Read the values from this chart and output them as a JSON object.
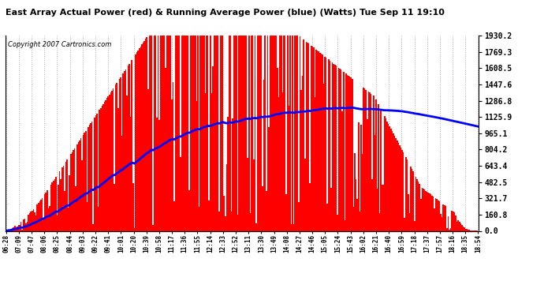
{
  "title": "East Array Actual Power (red) & Running Average Power (blue) (Watts) Tue Sep 11 19:10",
  "copyright": "Copyright 2007 Cartronics.com",
  "ylabel_right": [
    "1930.2",
    "1769.3",
    "1608.5",
    "1447.6",
    "1286.8",
    "1125.9",
    "965.1",
    "804.2",
    "643.4",
    "482.5",
    "321.7",
    "160.8",
    "0.0"
  ],
  "ymax": 1930.2,
  "ymin": 0.0,
  "background_color": "#ffffff",
  "bar_color": "#ff0000",
  "line_color": "#0000ff",
  "grid_color": "#aaaaaa",
  "x_labels": [
    "06:28",
    "07:09",
    "07:47",
    "08:06",
    "08:25",
    "08:44",
    "09:03",
    "09:22",
    "09:41",
    "10:01",
    "10:20",
    "10:39",
    "10:58",
    "11:17",
    "11:36",
    "11:55",
    "12:14",
    "12:33",
    "12:52",
    "13:11",
    "13:30",
    "13:49",
    "14:08",
    "14:27",
    "14:46",
    "15:05",
    "15:24",
    "15:43",
    "16:02",
    "16:21",
    "16:40",
    "16:59",
    "17:18",
    "17:37",
    "17:57",
    "18:16",
    "18:35",
    "18:54"
  ],
  "n_bars": 380,
  "figsize": [
    6.9,
    3.75
  ],
  "dpi": 100
}
